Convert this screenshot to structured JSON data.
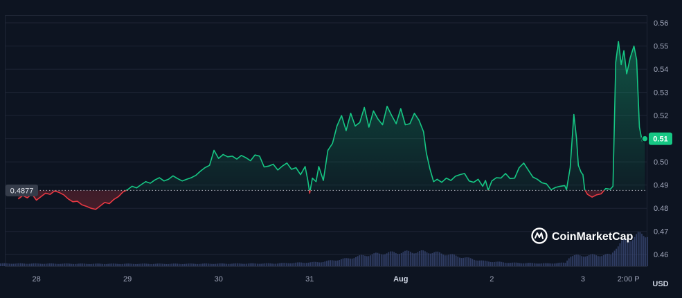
{
  "chart_data": {
    "type": "area",
    "ylim": [
      0.455,
      0.563
    ],
    "yticks": [
      0.46,
      0.47,
      0.48,
      0.49,
      0.5,
      0.51,
      0.52,
      0.53,
      0.54,
      0.55,
      0.56
    ],
    "ytick_labels": [
      "0.46",
      "0.47",
      "0.48",
      "0.49",
      "0.50",
      "0.51",
      "0.52",
      "0.53",
      "0.54",
      "0.55",
      "0.56"
    ],
    "xticks": [
      {
        "label": "28",
        "t": 0.4
      },
      {
        "label": "29",
        "t": 1.4
      },
      {
        "label": "30",
        "t": 2.4
      },
      {
        "label": "31",
        "t": 3.4
      },
      {
        "label": "Aug",
        "t": 4.4
      },
      {
        "label": "2",
        "t": 5.4
      },
      {
        "label": "3",
        "t": 6.4
      },
      {
        "label": "2:00 P",
        "t": 6.9
      }
    ],
    "xlim": [
      0,
      6.97
    ],
    "currency": "USD",
    "reference_price": 0.4877,
    "reference_label": "0.4877",
    "current_price_label": "0.51",
    "up_color": "#16c784",
    "down_color": "#ea3943",
    "series": [
      {
        "values": [
          [
            0.2,
            0.484
          ],
          [
            0.25,
            0.4855
          ],
          [
            0.3,
            0.4845
          ],
          [
            0.35,
            0.4862
          ],
          [
            0.4,
            0.4835
          ],
          [
            0.45,
            0.485
          ],
          [
            0.5,
            0.4865
          ],
          [
            0.55,
            0.486
          ],
          [
            0.6,
            0.4875
          ],
          [
            0.65,
            0.4868
          ],
          [
            0.7,
            0.4858
          ],
          [
            0.75,
            0.484
          ],
          [
            0.8,
            0.4828
          ],
          [
            0.85,
            0.483
          ],
          [
            0.9,
            0.4815
          ],
          [
            0.95,
            0.4808
          ],
          [
            1.0,
            0.48
          ],
          [
            1.05,
            0.4795
          ],
          [
            1.1,
            0.481
          ],
          [
            1.15,
            0.4825
          ],
          [
            1.2,
            0.482
          ],
          [
            1.25,
            0.4838
          ],
          [
            1.3,
            0.485
          ],
          [
            1.35,
            0.487
          ],
          [
            1.4,
            0.488
          ],
          [
            1.45,
            0.4895
          ],
          [
            1.5,
            0.4888
          ],
          [
            1.55,
            0.4902
          ],
          [
            1.6,
            0.4915
          ],
          [
            1.65,
            0.4908
          ],
          [
            1.7,
            0.4922
          ],
          [
            1.75,
            0.4932
          ],
          [
            1.8,
            0.4918
          ],
          [
            1.85,
            0.4925
          ],
          [
            1.9,
            0.494
          ],
          [
            1.95,
            0.4928
          ],
          [
            2.0,
            0.4918
          ],
          [
            2.05,
            0.4925
          ],
          [
            2.1,
            0.4932
          ],
          [
            2.15,
            0.4942
          ],
          [
            2.2,
            0.496
          ],
          [
            2.25,
            0.4975
          ],
          [
            2.3,
            0.4985
          ],
          [
            2.35,
            0.505
          ],
          [
            2.4,
            0.5015
          ],
          [
            2.45,
            0.5032
          ],
          [
            2.5,
            0.5022
          ],
          [
            2.55,
            0.5025
          ],
          [
            2.6,
            0.5012
          ],
          [
            2.65,
            0.5028
          ],
          [
            2.7,
            0.5018
          ],
          [
            2.75,
            0.5005
          ],
          [
            2.8,
            0.503
          ],
          [
            2.85,
            0.5025
          ],
          [
            2.9,
            0.4978
          ],
          [
            2.95,
            0.4982
          ],
          [
            3.0,
            0.499
          ],
          [
            3.05,
            0.4965
          ],
          [
            3.1,
            0.4982
          ],
          [
            3.15,
            0.4995
          ],
          [
            3.2,
            0.4968
          ],
          [
            3.25,
            0.4975
          ],
          [
            3.3,
            0.4945
          ],
          [
            3.35,
            0.498
          ],
          [
            3.38,
            0.492
          ],
          [
            3.4,
            0.4865
          ],
          [
            3.43,
            0.493
          ],
          [
            3.47,
            0.4915
          ],
          [
            3.5,
            0.498
          ],
          [
            3.55,
            0.492
          ],
          [
            3.6,
            0.505
          ],
          [
            3.65,
            0.508
          ],
          [
            3.7,
            0.5155
          ],
          [
            3.75,
            0.52
          ],
          [
            3.8,
            0.5135
          ],
          [
            3.85,
            0.521
          ],
          [
            3.9,
            0.5155
          ],
          [
            3.95,
            0.517
          ],
          [
            4.0,
            0.5235
          ],
          [
            4.05,
            0.515
          ],
          [
            4.1,
            0.522
          ],
          [
            4.15,
            0.5185
          ],
          [
            4.2,
            0.516
          ],
          [
            4.25,
            0.524
          ],
          [
            4.3,
            0.52
          ],
          [
            4.35,
            0.5165
          ],
          [
            4.4,
            0.523
          ],
          [
            4.45,
            0.516
          ],
          [
            4.5,
            0.5165
          ],
          [
            4.55,
            0.521
          ],
          [
            4.6,
            0.518
          ],
          [
            4.65,
            0.513
          ],
          [
            4.68,
            0.504
          ],
          [
            4.72,
            0.497
          ],
          [
            4.76,
            0.4915
          ],
          [
            4.8,
            0.4925
          ],
          [
            4.85,
            0.4912
          ],
          [
            4.9,
            0.493
          ],
          [
            4.95,
            0.492
          ],
          [
            5.0,
            0.4938
          ],
          [
            5.05,
            0.4945
          ],
          [
            5.1,
            0.495
          ],
          [
            5.15,
            0.4918
          ],
          [
            5.2,
            0.4912
          ],
          [
            5.25,
            0.4925
          ],
          [
            5.3,
            0.4895
          ],
          [
            5.33,
            0.492
          ],
          [
            5.36,
            0.4878
          ],
          [
            5.4,
            0.4918
          ],
          [
            5.45,
            0.4932
          ],
          [
            5.5,
            0.493
          ],
          [
            5.55,
            0.495
          ],
          [
            5.6,
            0.4928
          ],
          [
            5.65,
            0.493
          ],
          [
            5.7,
            0.4975
          ],
          [
            5.75,
            0.4995
          ],
          [
            5.8,
            0.4965
          ],
          [
            5.85,
            0.4935
          ],
          [
            5.9,
            0.4925
          ],
          [
            5.95,
            0.491
          ],
          [
            6.0,
            0.4905
          ],
          [
            6.05,
            0.488
          ],
          [
            6.1,
            0.489
          ],
          [
            6.15,
            0.4895
          ],
          [
            6.2,
            0.4898
          ],
          [
            6.22,
            0.488
          ],
          [
            6.26,
            0.4975
          ],
          [
            6.3,
            0.5205
          ],
          [
            6.33,
            0.51
          ],
          [
            6.35,
            0.4985
          ],
          [
            6.38,
            0.4955
          ],
          [
            6.4,
            0.4945
          ],
          [
            6.42,
            0.488
          ],
          [
            6.45,
            0.486
          ],
          [
            6.5,
            0.4848
          ],
          [
            6.55,
            0.4858
          ],
          [
            6.6,
            0.4862
          ],
          [
            6.65,
            0.4885
          ],
          [
            6.7,
            0.4882
          ],
          [
            6.73,
            0.4895
          ],
          [
            6.76,
            0.543
          ],
          [
            6.79,
            0.552
          ],
          [
            6.82,
            0.542
          ],
          [
            6.85,
            0.548
          ],
          [
            6.88,
            0.538
          ],
          [
            6.92,
            0.545
          ],
          [
            6.96,
            0.55
          ],
          [
            6.99,
            0.544
          ],
          [
            7.02,
            0.515
          ],
          [
            7.05,
            0.509
          ],
          [
            7.08,
            0.51
          ]
        ],
        "volume": [
          [
            0.0,
            0.08
          ],
          [
            1.0,
            0.07
          ],
          [
            2.0,
            0.07
          ],
          [
            3.0,
            0.08
          ],
          [
            3.5,
            0.12
          ],
          [
            3.8,
            0.22
          ],
          [
            4.0,
            0.32
          ],
          [
            4.2,
            0.38
          ],
          [
            4.5,
            0.42
          ],
          [
            4.7,
            0.42
          ],
          [
            4.9,
            0.35
          ],
          [
            5.1,
            0.25
          ],
          [
            5.3,
            0.15
          ],
          [
            5.6,
            0.1
          ],
          [
            6.0,
            0.08
          ],
          [
            6.2,
            0.1
          ],
          [
            6.25,
            0.3
          ],
          [
            6.5,
            0.32
          ],
          [
            6.7,
            0.33
          ],
          [
            6.75,
            0.55
          ],
          [
            6.85,
            0.75
          ],
          [
            7.0,
            0.9
          ],
          [
            7.1,
            0.95
          ]
        ]
      }
    ]
  },
  "brand": {
    "name": "CoinMarketCap",
    "icon": "coinmarketcap-logo"
  }
}
